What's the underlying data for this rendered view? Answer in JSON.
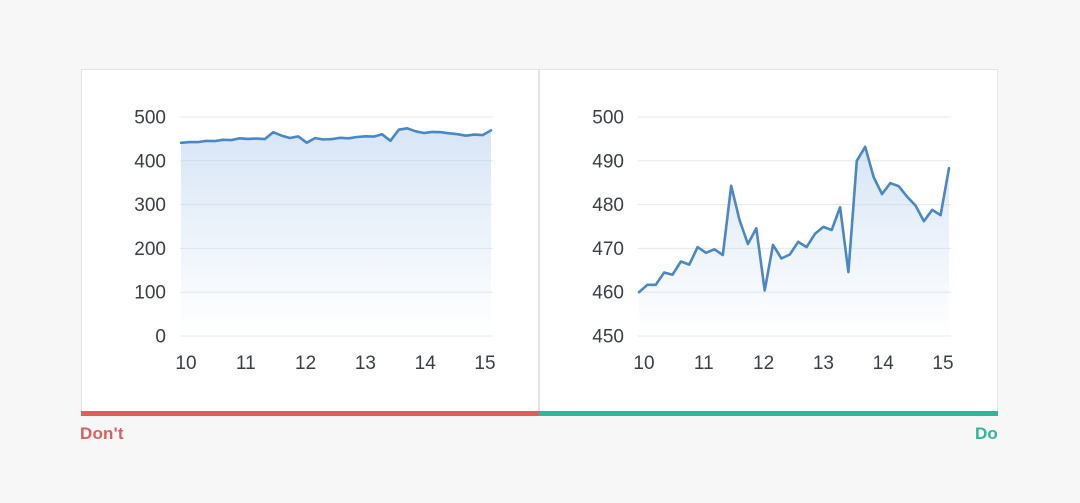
{
  "guide": {
    "dont_label": "Don't",
    "do_label": "Do",
    "dont_color": "#d75f5f",
    "do_color": "#2fb79a",
    "dont_bar_color": "#de5e5d",
    "do_bar_color": "#2fb79a"
  },
  "colors": {
    "background": "#f7f7f8",
    "card_background": "#ffffff",
    "card_border": "#e4e4e6",
    "grid_line": "#e5e7ea",
    "series_line": "#4b86c5",
    "series_fill": "#b7d0ee",
    "tick_text": "#3a3f45"
  },
  "chart_data": [
    {
      "id": "dont-chart",
      "type": "area",
      "title": "",
      "xlabel": "",
      "ylabel": "",
      "grid": true,
      "legend_position": "none",
      "x_tick_labels": [
        "10",
        "11",
        "12",
        "13",
        "14",
        "15"
      ],
      "y_tick_labels": [
        "500",
        "400",
        "300",
        "200",
        "100",
        "0"
      ],
      "ylim": [
        0,
        500
      ],
      "xlim": [
        10,
        15.2
      ],
      "x_start": 10,
      "x_step": 0.1385,
      "values": [
        441.0,
        442.7,
        442.7,
        445.5,
        445.0,
        448.0,
        447.3,
        451.3,
        450.0,
        450.8,
        449.5,
        465.3,
        457.5,
        452.0,
        455.6,
        441.4,
        451.8,
        448.7,
        449.6,
        452.5,
        451.3,
        454.3,
        455.9,
        455.2,
        460.4,
        445.6,
        471.0,
        474.2,
        467.3,
        463.4,
        465.9,
        465.2,
        462.8,
        460.8,
        457.2,
        459.8,
        458.6,
        469.3
      ]
    },
    {
      "id": "do-chart",
      "type": "area",
      "title": "",
      "xlabel": "",
      "ylabel": "",
      "grid": true,
      "legend_position": "none",
      "x_tick_labels": [
        "10",
        "11",
        "12",
        "13",
        "14",
        "15"
      ],
      "y_tick_labels": [
        "500",
        "490",
        "480",
        "470",
        "460",
        "450"
      ],
      "ylim": [
        450,
        500
      ],
      "xlim": [
        10,
        15.2
      ],
      "x_start": 10,
      "x_step": 0.1385,
      "values": [
        460.0,
        461.7,
        461.7,
        464.5,
        464.0,
        467.0,
        466.3,
        470.3,
        469.0,
        469.8,
        468.5,
        484.3,
        476.5,
        471.0,
        474.6,
        460.4,
        470.8,
        467.7,
        468.6,
        471.5,
        470.3,
        473.3,
        474.9,
        474.2,
        479.4,
        464.6,
        490.0,
        493.2,
        486.3,
        482.4,
        484.9,
        484.2,
        481.8,
        479.8,
        476.2,
        478.8,
        477.6,
        488.3
      ]
    }
  ]
}
